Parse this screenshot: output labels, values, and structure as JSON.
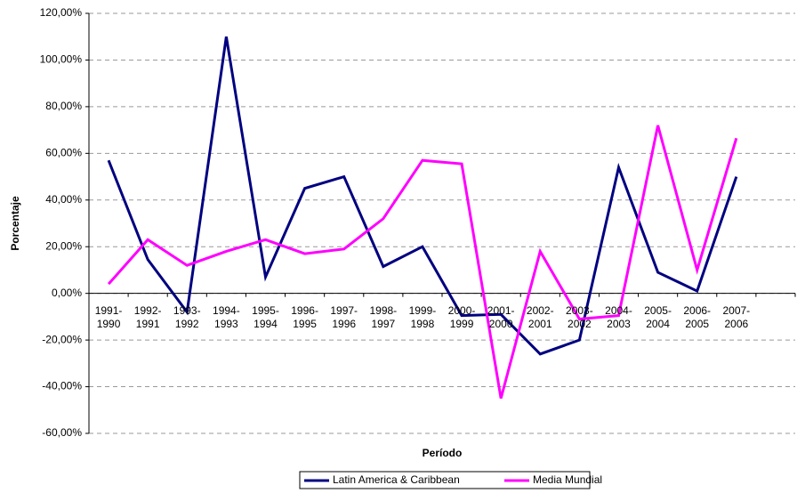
{
  "chart_data": {
    "type": "line",
    "y_label": "Porcentaje",
    "x_label": "Período",
    "categories": [
      "1991-1990",
      "1992-1991",
      "1993-1992",
      "1994-1993",
      "1995-1994",
      "1996-1995",
      "1997-1996",
      "1998-1997",
      "1999-1998",
      "2000-1999",
      "2001-2000",
      "2002-2001",
      "2003-2002",
      "2004-2003",
      "2005-2004",
      "2006-2005",
      "2007-2006",
      null
    ],
    "series": [
      {
        "name": "Latin America & Caribbean",
        "color": "#000080",
        "values": [
          57,
          14.5,
          -8,
          110,
          7,
          45,
          50,
          11.5,
          20,
          -9.5,
          -9,
          -26,
          -20,
          54,
          9,
          1,
          50,
          null
        ]
      },
      {
        "name": "Media Mundial",
        "color": "#ff00ff",
        "values": [
          4,
          23,
          12,
          18,
          23,
          17,
          19,
          32,
          57,
          55.5,
          -45,
          18,
          -11,
          -9.5,
          72,
          10,
          66.5,
          null
        ]
      }
    ],
    "ylim": [
      -60,
      120
    ],
    "yticks": [
      {
        "value": -60,
        "label": "-60,00%"
      },
      {
        "value": -40,
        "label": "-40,00%"
      },
      {
        "value": -20,
        "label": "-20,00%"
      },
      {
        "value": 0,
        "label": "0,00%"
      },
      {
        "value": 20,
        "label": "20,00%"
      },
      {
        "value": 40,
        "label": "40,00%"
      },
      {
        "value": 60,
        "label": "60,00%"
      },
      {
        "value": 80,
        "label": "80,00%"
      },
      {
        "value": 100,
        "label": "100,00%"
      },
      {
        "value": 120,
        "label": "120,00%"
      }
    ],
    "grid": true,
    "legend": "bottom"
  }
}
